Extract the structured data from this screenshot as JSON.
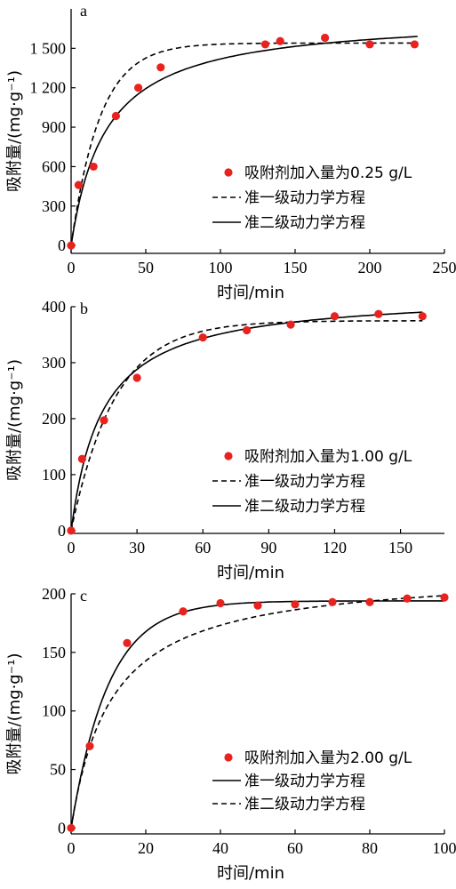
{
  "chart_data": [
    {
      "type": "scatter",
      "panel": "a",
      "xlabel": "时间/min",
      "ylabel": "吸附量/(mg·g⁻¹)",
      "xlim": [
        0,
        250
      ],
      "ylim": [
        -60,
        1800
      ],
      "xticks": [
        0,
        50,
        100,
        150,
        200,
        250
      ],
      "xtick_labels": [
        "0",
        "50",
        "100",
        "150",
        "200",
        "250"
      ],
      "yticks": [
        0,
        300,
        600,
        900,
        1200,
        1500
      ],
      "ytick_labels": [
        "0",
        "300",
        "600",
        "900",
        "1 200",
        "1 500"
      ],
      "legend_position": "lower-right",
      "series": [
        {
          "name": "吸附剂加入量为0.25 g/L",
          "kind": "points",
          "color": "#e8231f",
          "x": [
            0,
            5,
            15,
            30,
            45,
            60,
            130,
            140,
            170,
            200,
            230
          ],
          "y": [
            0,
            460,
            600,
            985,
            1200,
            1355,
            1530,
            1555,
            1580,
            1530,
            1530
          ]
        },
        {
          "name": "准一级动力学方程",
          "kind": "dashed",
          "model": "pfo",
          "qe": 1540,
          "k": 0.052,
          "x_end": 232
        },
        {
          "name": "准二级动力学方程",
          "kind": "solid",
          "model": "pso",
          "qe": 1750,
          "k": 2.45e-05,
          "x_end": 232
        }
      ]
    },
    {
      "type": "scatter",
      "panel": "b",
      "xlabel": "时间/min",
      "ylabel": "吸附量/(mg·g⁻¹)",
      "xlim": [
        0,
        170
      ],
      "ylim": [
        -5,
        400
      ],
      "xticks": [
        0,
        30,
        60,
        90,
        120,
        150
      ],
      "xtick_labels": [
        "0",
        "30",
        "60",
        "90",
        "120",
        "150"
      ],
      "yticks": [
        0,
        100,
        200,
        300,
        400
      ],
      "ytick_labels": [
        "0",
        "100",
        "200",
        "300",
        "400"
      ],
      "legend_position": "lower-right",
      "series": [
        {
          "name": "吸附剂加入量为1.00 g/L",
          "kind": "points",
          "color": "#e8231f",
          "x": [
            0,
            5,
            15,
            30,
            60,
            80,
            100,
            120,
            140,
            160
          ],
          "y": [
            0,
            128,
            197,
            273,
            345,
            358,
            368,
            383,
            387,
            383
          ]
        },
        {
          "name": "准一级动力学方程",
          "kind": "dashed",
          "model": "pfo",
          "qe": 375,
          "k": 0.05,
          "x_end": 160
        },
        {
          "name": "准二级动力学方程",
          "kind": "solid",
          "model": "pso",
          "qe": 425,
          "k": 0.000165,
          "x_end": 160
        }
      ]
    },
    {
      "type": "scatter",
      "panel": "c",
      "xlabel": "时间/min",
      "ylabel": "吸附量/(mg·g⁻¹)",
      "xlim": [
        0,
        100
      ],
      "ylim": [
        -5,
        200
      ],
      "xticks": [
        0,
        20,
        40,
        60,
        80,
        100
      ],
      "xtick_labels": [
        "0",
        "20",
        "40",
        "60",
        "80",
        "100"
      ],
      "yticks": [
        0,
        50,
        100,
        150,
        200
      ],
      "ytick_labels": [
        "0",
        "50",
        "100",
        "150",
        "200"
      ],
      "legend_position": "lower-right",
      "series": [
        {
          "name": "吸附剂加入量为2.00 g/L",
          "kind": "points",
          "color": "#e8231f",
          "x": [
            0,
            5,
            15,
            30,
            40,
            50,
            60,
            70,
            80,
            90,
            100
          ],
          "y": [
            0,
            70,
            158,
            185,
            192,
            190,
            191,
            193,
            193,
            196,
            197
          ]
        },
        {
          "name": "准一级动力学方程",
          "kind": "solid",
          "model": "pfo",
          "qe": 194,
          "k": 0.1,
          "x_end": 100
        },
        {
          "name": "准二级动力学方程",
          "kind": "dashed",
          "model": "pso",
          "qe": 220,
          "k": 0.00042,
          "x_end": 100
        }
      ]
    }
  ]
}
